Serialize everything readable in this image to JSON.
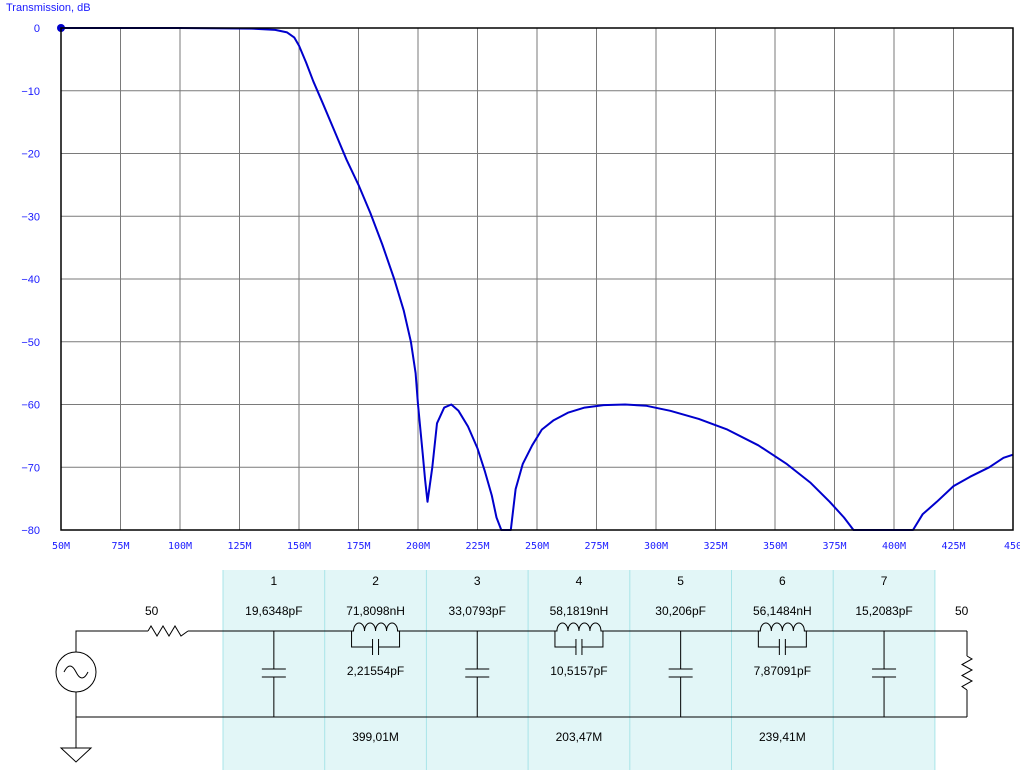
{
  "chart_data": {
    "type": "line",
    "ylabel": "Transmission, dB",
    "ylim": [
      -80,
      0
    ],
    "xlim": [
      50,
      450
    ],
    "y_ticks": [
      0,
      -10,
      -20,
      -30,
      -40,
      -50,
      -60,
      -70,
      -80
    ],
    "y_tick_labels": [
      "0",
      "−10",
      "−20",
      "−30",
      "−40",
      "−50",
      "−60",
      "−70",
      "−80"
    ],
    "x_ticks": [
      50,
      75,
      100,
      125,
      150,
      175,
      200,
      225,
      250,
      275,
      300,
      325,
      350,
      375,
      400,
      425,
      450
    ],
    "x_tick_labels": [
      "50M",
      "75M",
      "100M",
      "125M",
      "150M",
      "175M",
      "200M",
      "225M",
      "250M",
      "275M",
      "300M",
      "325M",
      "350M",
      "375M",
      "400M",
      "425M",
      "450"
    ],
    "grid": true,
    "line_color": "#0000cc",
    "series": [
      {
        "x": [
          50,
          100,
          130,
          140,
          145,
          148,
          150,
          153,
          156,
          160,
          165,
          170,
          175,
          180,
          185,
          190,
          194,
          197,
          199,
          200,
          201,
          202,
          203,
          204,
          206,
          208,
          211,
          214,
          217,
          221,
          225,
          228,
          231,
          233,
          235,
          236,
          236.5,
          239,
          241,
          244,
          248,
          252,
          257,
          263,
          270,
          278,
          287,
          296,
          306,
          318,
          330,
          343,
          355,
          365,
          373,
          379,
          383,
          385,
          395,
          406,
          408,
          412,
          418,
          425,
          432,
          440,
          446,
          450
        ],
        "y": [
          0,
          0,
          -0.1,
          -0.3,
          -0.7,
          -1.5,
          -2.8,
          -5.5,
          -8.5,
          -12,
          -16.5,
          -21,
          -25,
          -29.5,
          -34.5,
          -40,
          -45,
          -50,
          -55,
          -60,
          -64,
          -68,
          -72,
          -75.5,
          -70,
          -63,
          -60.5,
          -60,
          -61,
          -63.5,
          -67,
          -70.5,
          -74.5,
          -78,
          -80,
          -80,
          -80,
          -80,
          -73.5,
          -69.5,
          -66.5,
          -64,
          -62.5,
          -61.3,
          -60.5,
          -60.1,
          -60,
          -60.2,
          -61,
          -62.3,
          -64,
          -66.5,
          -69.5,
          -72.5,
          -75.5,
          -78,
          -80,
          -80,
          -80,
          -80,
          -80,
          -77.5,
          -75.5,
          -73,
          -71.5,
          -70,
          -68.5,
          -68
        ]
      }
    ],
    "points": [
      {
        "x": 50,
        "y": 0
      }
    ]
  },
  "circuit": {
    "source_impedance": "50",
    "load_impedance": "50",
    "bg_color": "#e2f6f7",
    "sections": [
      {
        "num": "1",
        "top": "19,6348pF",
        "mid": "",
        "bottom": ""
      },
      {
        "num": "2",
        "top": "71,8098nH",
        "mid": "2,21554pF",
        "bottom": "399,01M"
      },
      {
        "num": "3",
        "top": "33,0793pF",
        "mid": "",
        "bottom": ""
      },
      {
        "num": "4",
        "top": "58,1819nH",
        "mid": "10,5157pF",
        "bottom": "203,47M"
      },
      {
        "num": "5",
        "top": "30,206pF",
        "mid": "",
        "bottom": ""
      },
      {
        "num": "6",
        "top": "56,1484nH",
        "mid": "7,87091pF",
        "bottom": "239,41M"
      },
      {
        "num": "7",
        "top": "15,2083pF",
        "mid": "",
        "bottom": ""
      }
    ]
  }
}
